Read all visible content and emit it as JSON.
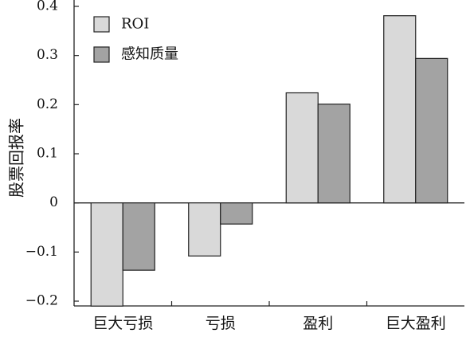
{
  "chart_data": {
    "type": "bar",
    "title": "",
    "xlabel": "",
    "ylabel": "股票回报率",
    "categories": [
      "巨大亏损",
      "亏损",
      "盈利",
      "巨大盈利"
    ],
    "series": [
      {
        "name": "ROI",
        "color": "#d9d9d9",
        "values": [
          -0.21,
          -0.108,
          0.224,
          0.381
        ]
      },
      {
        "name": "感知质量",
        "color": "#a3a3a3",
        "values": [
          -0.137,
          -0.043,
          0.201,
          0.294
        ]
      }
    ],
    "ylim": [
      -0.21,
      0.4
    ],
    "yticks": [
      {
        "value": 0.4,
        "label": "0.4"
      },
      {
        "value": 0.3,
        "label": "0.3"
      },
      {
        "value": 0.2,
        "label": "0.2"
      },
      {
        "value": 0.1,
        "label": "0.1"
      },
      {
        "value": 0,
        "label": "0"
      },
      {
        "value": -0.1,
        "label": "−0.1"
      },
      {
        "value": -0.2,
        "label": "−0.2"
      }
    ],
    "grid": false,
    "legend_position": "top-left",
    "bar_edge_color": "#222222",
    "axis_color": "#222222"
  }
}
